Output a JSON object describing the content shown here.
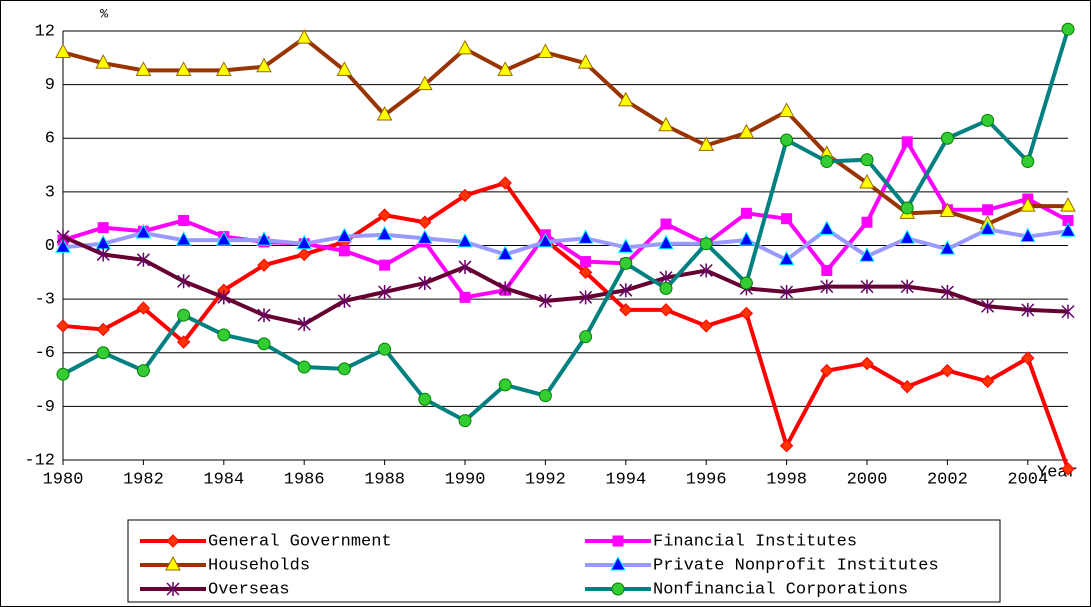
{
  "chart_data": {
    "type": "line",
    "y_label": "%",
    "x_label": "Year",
    "x": [
      1980,
      1981,
      1982,
      1983,
      1984,
      1985,
      1986,
      1987,
      1988,
      1989,
      1990,
      1991,
      1992,
      1993,
      1994,
      1995,
      1996,
      1997,
      1998,
      1999,
      2000,
      2001,
      2002,
      2003,
      2004,
      2005
    ],
    "xlim": [
      1980,
      2005
    ],
    "xticks": [
      1980,
      1982,
      1984,
      1986,
      1988,
      1990,
      1992,
      1994,
      1996,
      1998,
      2000,
      2002,
      2004
    ],
    "ylim": [
      -12,
      12
    ],
    "yticks": [
      -12,
      -9,
      -6,
      -3,
      0,
      3,
      6,
      9,
      12
    ],
    "grid": true,
    "legend": "bottom",
    "series": [
      {
        "name": "General Government",
        "color": "#ff0000",
        "marker": "diamond",
        "marker_color": "#ff3300",
        "values": [
          -4.5,
          -4.7,
          -3.5,
          -5.4,
          -2.5,
          -1.1,
          -0.5,
          0.2,
          1.7,
          1.3,
          2.8,
          3.5,
          0.3,
          -1.5,
          -3.6,
          -3.6,
          -4.5,
          -3.8,
          -11.2,
          -7.0,
          -6.6,
          -7.9,
          -7.0,
          -7.6,
          -6.3,
          -12.5
        ]
      },
      {
        "name": "Financial Institutes",
        "color": "#ff00ff",
        "marker": "square",
        "marker_color": "#ff00ff",
        "values": [
          0.3,
          1.0,
          0.8,
          1.4,
          0.5,
          0.2,
          0.1,
          -0.3,
          -1.1,
          0.2,
          -2.9,
          -2.5,
          0.6,
          -0.9,
          -1.0,
          1.2,
          0.1,
          1.8,
          1.5,
          -1.4,
          1.3,
          5.8,
          2.0,
          2.0,
          2.6,
          1.4
        ]
      },
      {
        "name": "Households",
        "color": "#993300",
        "marker": "triangle",
        "marker_color": "#ffff00",
        "values": [
          10.8,
          10.2,
          9.8,
          9.8,
          9.8,
          10.0,
          11.6,
          9.8,
          7.3,
          9.0,
          11.0,
          9.8,
          10.8,
          10.2,
          8.1,
          6.7,
          5.6,
          6.3,
          7.5,
          5.1,
          3.5,
          1.8,
          1.9,
          1.2,
          2.2,
          2.2
        ]
      },
      {
        "name": "Private Nonprofit Institutes",
        "color": "#9999ff",
        "marker": "triangle",
        "marker_color": "#0000ff",
        "values": [
          -0.1,
          0.1,
          0.7,
          0.3,
          0.3,
          0.3,
          0.1,
          0.5,
          0.6,
          0.4,
          0.2,
          -0.5,
          0.2,
          0.4,
          -0.1,
          0.1,
          0.1,
          0.3,
          -0.8,
          0.9,
          -0.6,
          0.4,
          -0.2,
          0.9,
          0.5,
          0.8
        ]
      },
      {
        "name": "Overseas",
        "color": "#660033",
        "marker": "asterisk",
        "marker_color": "#660066",
        "values": [
          0.5,
          -0.5,
          -0.8,
          -2.0,
          -2.9,
          -3.9,
          -4.4,
          -3.1,
          -2.6,
          -2.1,
          -1.2,
          -2.4,
          -3.1,
          -2.9,
          -2.5,
          -1.8,
          -1.4,
          -2.4,
          -2.6,
          -2.3,
          -2.3,
          -2.3,
          -2.6,
          -3.4,
          -3.6,
          -3.7
        ]
      },
      {
        "name": "Nonfinancial Corporations",
        "color": "#008080",
        "marker": "circle",
        "marker_color": "#33cc33",
        "values": [
          -7.2,
          -6.0,
          -7.0,
          -3.9,
          -5.0,
          -5.5,
          -6.8,
          -6.9,
          -5.8,
          -8.6,
          -9.8,
          -7.8,
          -8.4,
          -5.1,
          -1.0,
          -2.4,
          0.1,
          -2.1,
          5.9,
          4.7,
          4.8,
          2.1,
          6.0,
          7.0,
          4.7,
          12.1
        ]
      }
    ]
  }
}
